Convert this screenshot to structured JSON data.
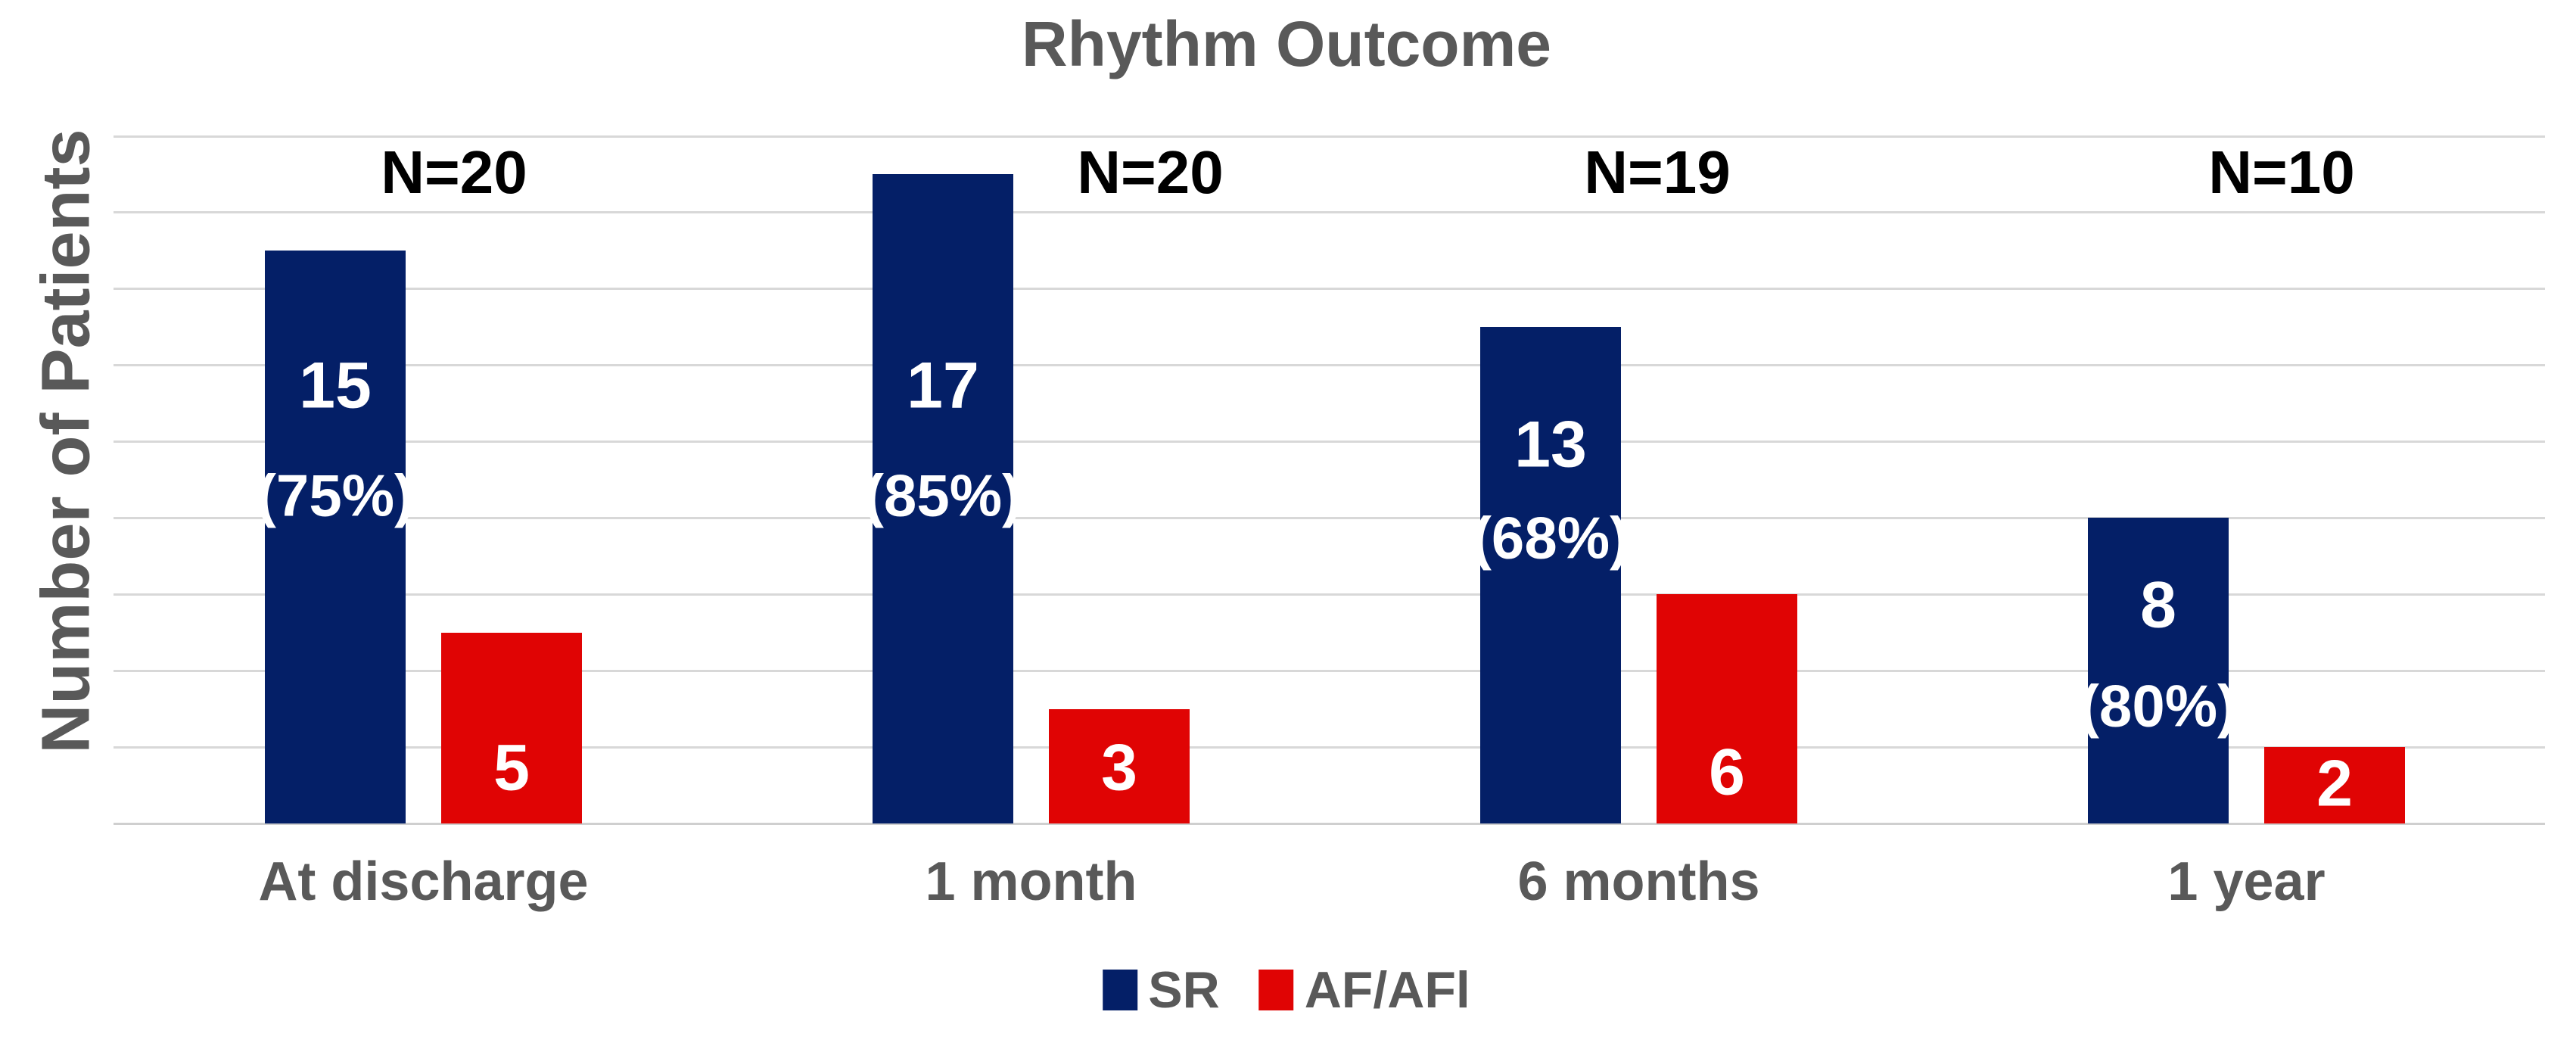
{
  "colors": {
    "sr_navy": "#041f67",
    "af_red": "#e00404",
    "gridline": "#d8d8d8",
    "axis_text": "#595959",
    "n_label_text": "#000000",
    "bar_label_text": "#ffffff",
    "background": "#ffffff"
  },
  "chart_data": {
    "type": "bar",
    "title": "Rhythm Outcome",
    "ylabel": "Number of Patients",
    "xlabel": "",
    "ylim": [
      0,
      18
    ],
    "gridline_step": 2,
    "grid": true,
    "y_tick_labels_shown": false,
    "legend_position": "bottom",
    "categories": [
      "At discharge",
      "1 month",
      "6 months",
      "1 year"
    ],
    "n_labels": [
      "N=20",
      "N=20",
      "N=19",
      "N=10"
    ],
    "series": [
      {
        "name": "SR",
        "color": "#041f67",
        "values": [
          15,
          17,
          13,
          8
        ],
        "bar_labels": [
          "15",
          "17",
          "13",
          "8"
        ],
        "bar_sublabels": [
          "(75%)",
          "(85%)",
          "(68%)",
          "(80%)"
        ]
      },
      {
        "name": "AF/AFl",
        "color": "#e00404",
        "values": [
          5,
          3,
          6,
          2
        ],
        "bar_labels": [
          "5",
          "3",
          "6",
          "2"
        ],
        "bar_sublabels": [
          "",
          "",
          "",
          ""
        ]
      }
    ]
  }
}
